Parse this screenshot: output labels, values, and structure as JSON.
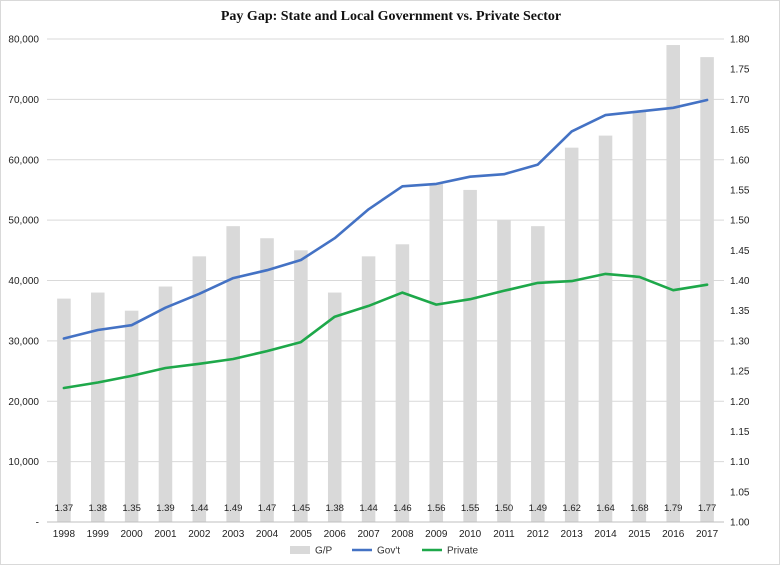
{
  "chart_data": {
    "type": "bar",
    "title": "Pay Gap: State and Local Government vs. Private Sector",
    "categories": [
      "1998",
      "1999",
      "2000",
      "2001",
      "2002",
      "2003",
      "2004",
      "2005",
      "2006",
      "2007",
      "2008",
      "2009",
      "2010",
      "2011",
      "2012",
      "2013",
      "2014",
      "2015",
      "2016",
      "2017"
    ],
    "series": [
      {
        "name": "G/P",
        "type": "bar",
        "axis": "right",
        "color": "#d9d9d9",
        "values": [
          1.37,
          1.38,
          1.35,
          1.39,
          1.44,
          1.49,
          1.47,
          1.45,
          1.38,
          1.44,
          1.46,
          1.56,
          1.55,
          1.5,
          1.49,
          1.62,
          1.64,
          1.68,
          1.79,
          1.77
        ],
        "labels": [
          "1.37",
          "1.38",
          "1.35",
          "1.39",
          "1.44",
          "1.49",
          "1.47",
          "1.45",
          "1.38",
          "1.44",
          "1.46",
          "1.56",
          "1.55",
          "1.50",
          "1.49",
          "1.62",
          "1.64",
          "1.68",
          "1.79",
          "1.77"
        ]
      },
      {
        "name": "Gov't",
        "type": "line",
        "axis": "left",
        "color": "#4472c4",
        "values": [
          30400,
          31800,
          32600,
          35500,
          37800,
          40400,
          41700,
          43400,
          47000,
          51800,
          55600,
          56000,
          57200,
          57600,
          59200,
          64700,
          67400,
          68000,
          68600,
          69900
        ]
      },
      {
        "name": "Private",
        "type": "line",
        "axis": "left",
        "color": "#1ea84a",
        "values": [
          22200,
          23100,
          24200,
          25500,
          26200,
          27000,
          28300,
          29800,
          34000,
          35800,
          38000,
          36000,
          36900,
          38300,
          39600,
          39900,
          41100,
          40600,
          38400,
          39300
        ]
      }
    ],
    "y_left": {
      "range": [
        0,
        80000
      ],
      "ticks": [
        0,
        10000,
        20000,
        30000,
        40000,
        50000,
        60000,
        70000,
        80000
      ],
      "tick_labels": [
        "-",
        "10,000",
        "20,000",
        "30,000",
        "40,000",
        "50,000",
        "60,000",
        "70,000",
        "80,000"
      ]
    },
    "y_right": {
      "range": [
        1.0,
        1.8
      ],
      "ticks": [
        1.0,
        1.05,
        1.1,
        1.15,
        1.2,
        1.25,
        1.3,
        1.35,
        1.4,
        1.45,
        1.5,
        1.55,
        1.6,
        1.65,
        1.7,
        1.75,
        1.8
      ],
      "tick_labels": [
        "1.00",
        "1.05",
        "1.10",
        "1.15",
        "1.20",
        "1.25",
        "1.30",
        "1.35",
        "1.40",
        "1.45",
        "1.50",
        "1.55",
        "1.60",
        "1.65",
        "1.70",
        "1.75",
        "1.80"
      ]
    },
    "grid": "horizontal",
    "legend_position": "bottom",
    "xlabel": "",
    "ylabel": ""
  }
}
